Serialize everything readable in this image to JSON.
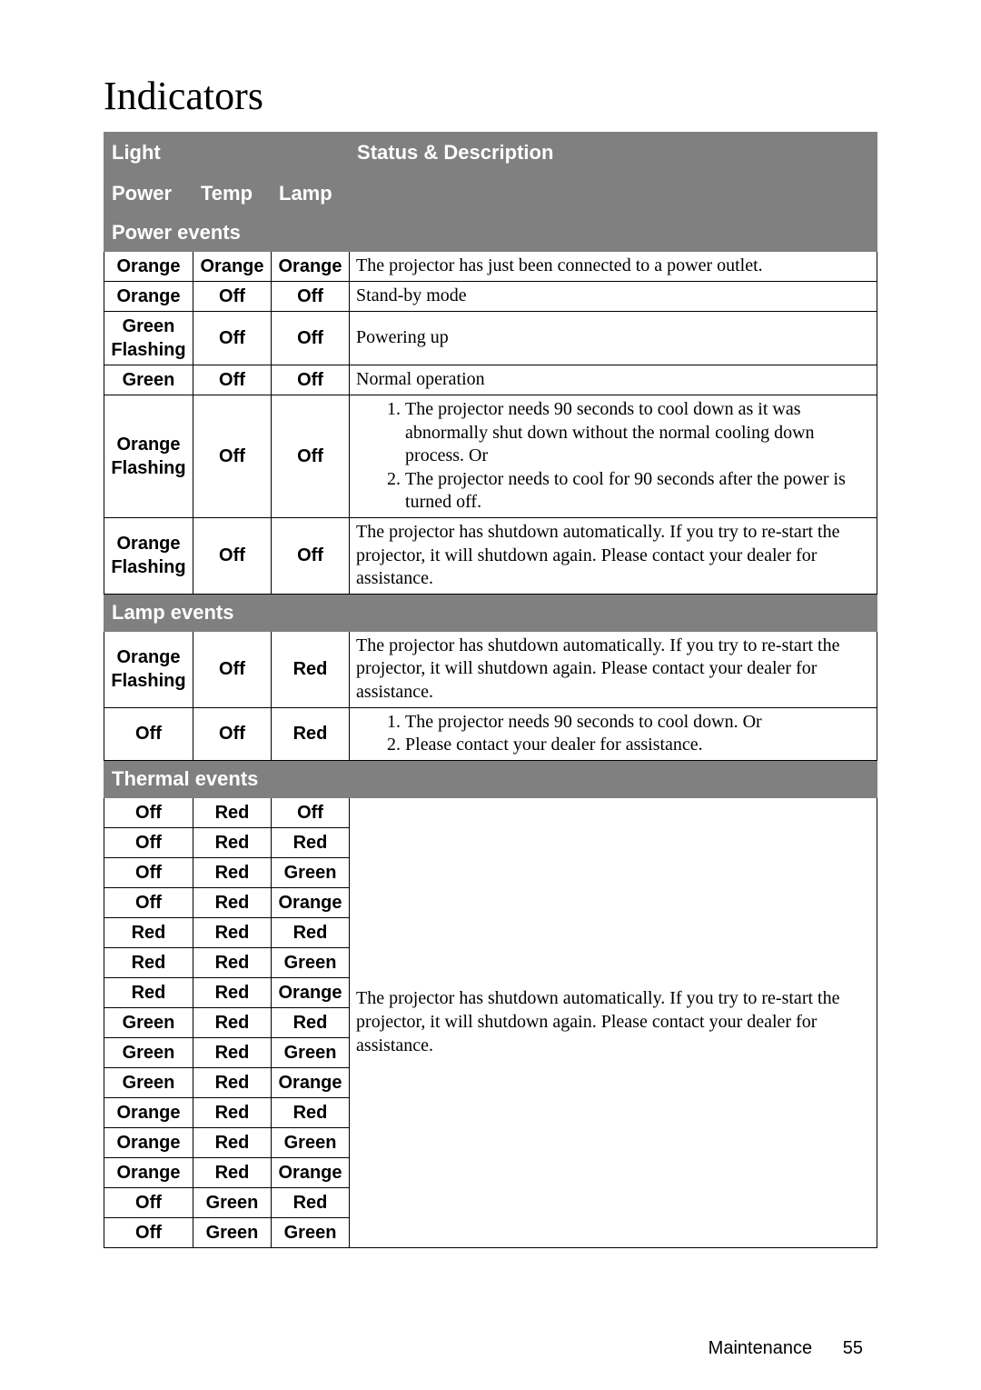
{
  "title": "Indicators",
  "footer": {
    "section": "Maintenance",
    "page": "55"
  },
  "header": {
    "light": "Light",
    "status": "Status & Description",
    "power": "Power",
    "temp": "Temp",
    "lamp": "Lamp"
  },
  "sections": {
    "power": "Power events",
    "lamp_ev": "Lamp events",
    "thermal": "Thermal events"
  },
  "rows": {
    "p1": {
      "power": "Orange",
      "temp": "Orange",
      "lamp": "Orange",
      "desc": "The projector has just been connected to a power outlet."
    },
    "p2": {
      "power": "Orange",
      "temp": "Off",
      "lamp": "Off",
      "desc": "Stand-by mode"
    },
    "p3": {
      "power": "Green Flashing",
      "temp": "Off",
      "lamp": "Off",
      "desc": "Powering up"
    },
    "p4": {
      "power": "Green",
      "temp": "Off",
      "lamp": "Off",
      "desc": "Normal operation"
    },
    "p5": {
      "power": "Orange Flashing",
      "temp": "Off",
      "lamp": "Off",
      "list": [
        "The projector needs 90 seconds to cool down as it was abnormally shut down without the normal cooling down process. Or",
        "The projector needs to cool for 90 seconds after the power is turned off."
      ]
    },
    "p6": {
      "power": "Orange Flashing",
      "temp": "Off",
      "lamp": "Off",
      "desc": "The projector has shutdown automatically. If you try to re-start the projector, it will shutdown again. Please contact your dealer for assistance."
    },
    "l1": {
      "power": "Orange Flashing",
      "temp": "Off",
      "lamp": "Red",
      "desc": "The projector has shutdown automatically. If you try to re-start the projector, it will shutdown again. Please contact your dealer for assistance."
    },
    "l2": {
      "power": "Off",
      "temp": "Off",
      "lamp": "Red",
      "list": [
        "The projector needs 90 seconds to cool down. Or",
        "Please contact your dealer for assistance."
      ]
    },
    "thermal_desc": "The projector has shutdown automatically. If you try to re-start the projector, it will shutdown again. Please contact your dealer for assistance.",
    "t": [
      {
        "power": "Off",
        "temp": "Red",
        "lamp": "Off"
      },
      {
        "power": "Off",
        "temp": "Red",
        "lamp": "Red"
      },
      {
        "power": "Off",
        "temp": "Red",
        "lamp": "Green"
      },
      {
        "power": "Off",
        "temp": "Red",
        "lamp": "Orange"
      },
      {
        "power": "Red",
        "temp": "Red",
        "lamp": "Red"
      },
      {
        "power": "Red",
        "temp": "Red",
        "lamp": "Green"
      },
      {
        "power": "Red",
        "temp": "Red",
        "lamp": "Orange"
      },
      {
        "power": "Green",
        "temp": "Red",
        "lamp": "Red"
      },
      {
        "power": "Green",
        "temp": "Red",
        "lamp": "Green"
      },
      {
        "power": "Green",
        "temp": "Red",
        "lamp": "Orange"
      },
      {
        "power": "Orange",
        "temp": "Red",
        "lamp": "Red"
      },
      {
        "power": "Orange",
        "temp": "Red",
        "lamp": "Green"
      },
      {
        "power": "Orange",
        "temp": "Red",
        "lamp": "Orange"
      },
      {
        "power": "Off",
        "temp": "Green",
        "lamp": "Red"
      },
      {
        "power": "Off",
        "temp": "Green",
        "lamp": "Green"
      }
    ]
  }
}
